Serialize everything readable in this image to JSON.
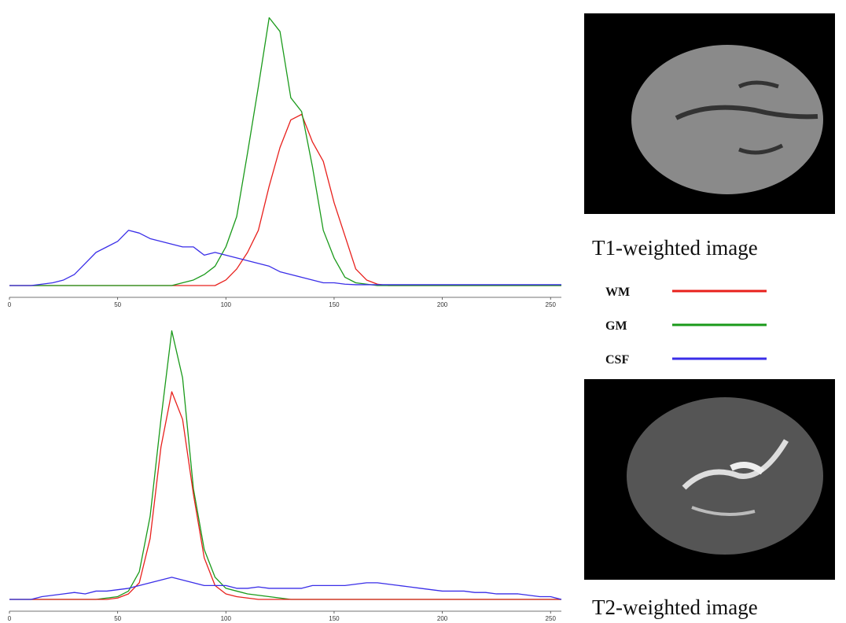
{
  "chart_data": [
    {
      "type": "line",
      "x": [
        0,
        5,
        10,
        15,
        20,
        25,
        30,
        35,
        40,
        45,
        50,
        55,
        60,
        65,
        70,
        75,
        80,
        85,
        90,
        95,
        100,
        105,
        110,
        115,
        120,
        125,
        130,
        135,
        140,
        145,
        150,
        155,
        160,
        165,
        170,
        175,
        180,
        185,
        190,
        195,
        200,
        205,
        210,
        215,
        220,
        225,
        230,
        235,
        240,
        245,
        250,
        255
      ],
      "xlim": [
        0,
        255
      ],
      "xticks": [
        0,
        50,
        100,
        150,
        200,
        250
      ],
      "ylim": [
        0,
        100
      ],
      "series": [
        {
          "name": "WM",
          "color": "#e8201c",
          "values": [
            0,
            0,
            0,
            0,
            0,
            0,
            0,
            0,
            0,
            0,
            0,
            0,
            0,
            0,
            0,
            0,
            0,
            0,
            0,
            0,
            2,
            6,
            12,
            20,
            36,
            50,
            60,
            62,
            52,
            45,
            30,
            18,
            6,
            2,
            0.5,
            0,
            0,
            0,
            0,
            0,
            0,
            0,
            0,
            0,
            0,
            0,
            0,
            0,
            0,
            0,
            0,
            0
          ]
        },
        {
          "name": "GM",
          "color": "#1a9a1a",
          "values": [
            0,
            0,
            0,
            0,
            0,
            0,
            0,
            0,
            0,
            0,
            0,
            0,
            0,
            0,
            0,
            0,
            1,
            2,
            4,
            7,
            14,
            25,
            48,
            72,
            97,
            92,
            68,
            63,
            43,
            20,
            10,
            3,
            1,
            0.5,
            0,
            0,
            0,
            0,
            0,
            0,
            0,
            0,
            0,
            0,
            0,
            0,
            0,
            0,
            0,
            0,
            0,
            0
          ]
        },
        {
          "name": "CSF",
          "color": "#3a2ee8",
          "values": [
            0,
            0,
            0,
            0.5,
            1,
            2,
            4,
            8,
            12,
            14,
            16,
            20,
            19,
            17,
            16,
            15,
            14,
            14,
            11,
            12,
            11,
            10,
            9,
            8,
            7,
            5,
            4,
            3,
            2,
            1,
            1,
            0.5,
            0.3,
            0.3,
            0.3,
            0.3,
            0.3,
            0.3,
            0.3,
            0.3,
            0.3,
            0.3,
            0.3,
            0.3,
            0.3,
            0.3,
            0.3,
            0.3,
            0.3,
            0.3,
            0.3,
            0.3
          ]
        }
      ]
    },
    {
      "type": "line",
      "x": [
        0,
        5,
        10,
        15,
        20,
        25,
        30,
        35,
        40,
        45,
        50,
        55,
        60,
        65,
        70,
        75,
        80,
        85,
        90,
        95,
        100,
        105,
        110,
        115,
        120,
        125,
        130,
        135,
        140,
        145,
        150,
        155,
        160,
        165,
        170,
        175,
        180,
        185,
        190,
        195,
        200,
        205,
        210,
        215,
        220,
        225,
        230,
        235,
        240,
        245,
        250,
        255
      ],
      "xlim": [
        0,
        255
      ],
      "xticks": [
        0,
        50,
        100,
        150,
        200,
        250
      ],
      "ylim": [
        0,
        100
      ],
      "series": [
        {
          "color": "#1a9a1a",
          "values": [
            0,
            0,
            0,
            0,
            0,
            0,
            0,
            0,
            0,
            0.5,
            1,
            3,
            10,
            30,
            65,
            97,
            80,
            40,
            18,
            8,
            4,
            3,
            2,
            1.5,
            1,
            0.5,
            0,
            0,
            0,
            0,
            0,
            0,
            0,
            0,
            0,
            0,
            0,
            0,
            0,
            0,
            0,
            0,
            0,
            0,
            0,
            0,
            0,
            0,
            0,
            0,
            0,
            0
          ]
        },
        {
          "color": "#e8201c",
          "values": [
            0,
            0,
            0,
            0,
            0,
            0,
            0,
            0,
            0,
            0,
            0.5,
            2,
            6,
            22,
            55,
            75,
            65,
            38,
            15,
            5,
            2,
            1,
            0.5,
            0,
            0,
            0,
            0,
            0,
            0,
            0,
            0,
            0,
            0,
            0,
            0,
            0,
            0,
            0,
            0,
            0,
            0,
            0,
            0,
            0,
            0,
            0,
            0,
            0,
            0,
            0,
            0,
            0
          ]
        },
        {
          "color": "#3a2ee8",
          "values": [
            0,
            0,
            0,
            1,
            1.5,
            2,
            2.5,
            2,
            3,
            3,
            3.5,
            4,
            5,
            6,
            7,
            8,
            7,
            6,
            5,
            5,
            5,
            4,
            4,
            4.5,
            4,
            4,
            4,
            4,
            5,
            5,
            5,
            5,
            5.5,
            6,
            6,
            5.5,
            5,
            4.5,
            4,
            3.5,
            3,
            3,
            3,
            2.5,
            2.5,
            2,
            2,
            2,
            1.5,
            1,
            1,
            0
          ]
        }
      ]
    }
  ],
  "images": [
    {
      "caption": "T1-weighted image"
    },
    {
      "caption": "T2-weighted image"
    }
  ]
}
